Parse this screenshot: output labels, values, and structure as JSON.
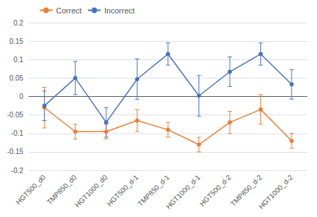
{
  "chart_data": {
    "type": "line",
    "categories": [
      "HGT500_d0",
      "TMP850_d0",
      "HGT1000_d0",
      "HGT500_d-1",
      "TMP850_d-1",
      "HGT1000_d-1",
      "HGT500_d-2",
      "TMP850_d-2",
      "HGT1000_d-2"
    ],
    "series": [
      {
        "name": "Correct",
        "color": "#ED7D31",
        "marker": "circle",
        "values": [
          -0.03,
          -0.095,
          -0.095,
          -0.065,
          -0.09,
          -0.13,
          -0.07,
          -0.035,
          -0.12
        ],
        "errors": [
          0.055,
          0.02,
          0.02,
          0.03,
          0.02,
          0.02,
          0.03,
          0.04,
          0.02
        ]
      },
      {
        "name": "Incorrect",
        "color": "#4472C4",
        "marker": "circle",
        "values": [
          -0.025,
          0.05,
          -0.07,
          0.047,
          0.115,
          0.002,
          0.067,
          0.115,
          0.033
        ],
        "errors": [
          0.04,
          0.045,
          0.04,
          0.055,
          0.03,
          0.055,
          0.04,
          0.03,
          0.04
        ]
      }
    ],
    "ylim": [
      -0.2,
      0.2
    ],
    "yticks": [
      -0.2,
      -0.15,
      -0.1,
      -0.05,
      0,
      0.05,
      0.1,
      0.15,
      0.2
    ],
    "grid": true,
    "legend": "upper left"
  }
}
